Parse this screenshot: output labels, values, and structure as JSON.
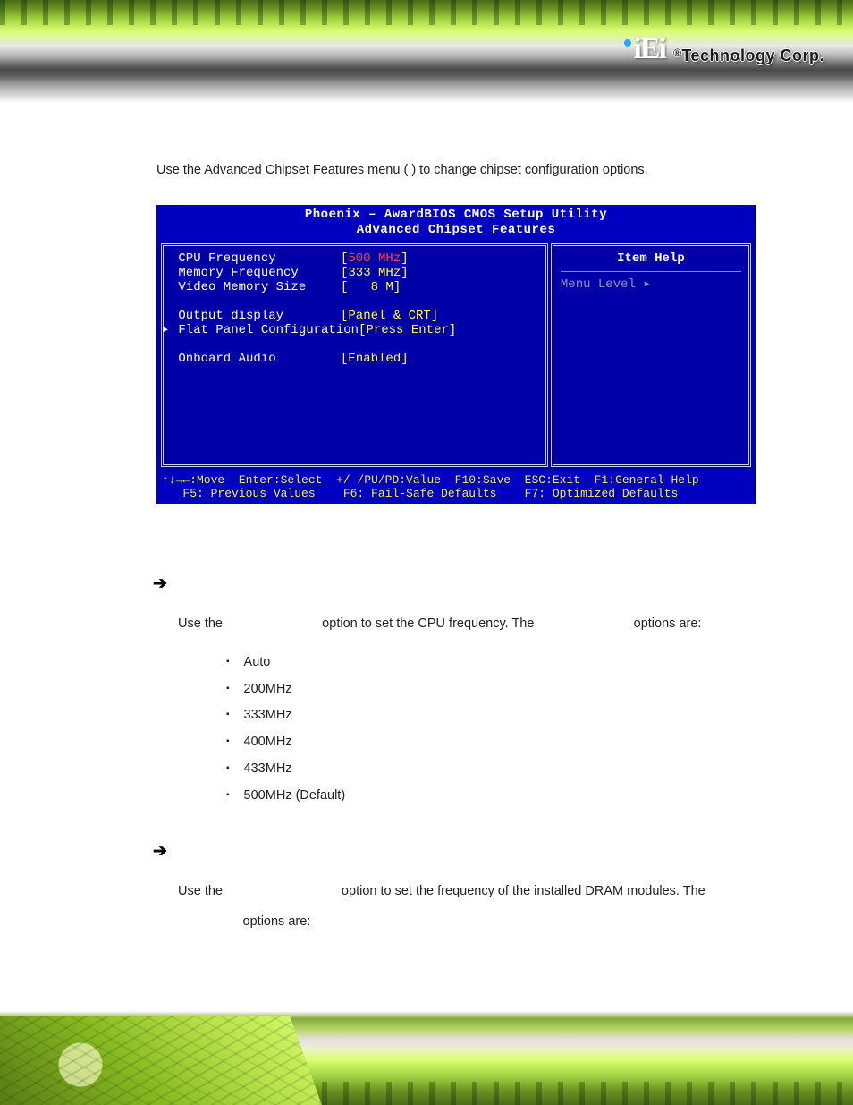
{
  "header": {
    "logo_text": "iEi",
    "logo_dot_colors": [
      "#2aa8ff",
      "#ff8a00",
      "#2aa8ff"
    ],
    "brand_prefix": "®",
    "brand_text": "Technology Corp.",
    "banner_gradient_top": [
      "#4a6b1a",
      "#6b9020",
      "#a0d040",
      "#d8ff70",
      "#e8e8e8",
      "#b0b0b0",
      "#707070",
      "#4a4a4a"
    ],
    "circuit_colors": [
      "#5a7a15",
      "#87b820",
      "#b8e048",
      "#d8ff70"
    ]
  },
  "intro": {
    "line": "Use the Advanced Chipset Features menu (                 ) to change chipset configuration options."
  },
  "bios": {
    "title_line1": "Phoenix – AwardBIOS CMOS Setup Utility",
    "title_line2": "Advanced Chipset Features",
    "colors": {
      "title_bg": "#0000c0",
      "body_bg": "#0000a8",
      "border": "#d0d0ff",
      "text": "#ffffff",
      "value": "#ffff40",
      "highlight": "#ff4040",
      "dim": "#9090c8",
      "footer_text": "#f0f040"
    },
    "items": [
      {
        "label": "CPU Frequency",
        "value": "500 MHz",
        "highlight": true,
        "pointer": false
      },
      {
        "label": "Memory Frequency",
        "value": "333 MHz",
        "highlight": false,
        "pointer": false
      },
      {
        "label": "Video Memory Size",
        "value": "   8 M",
        "highlight": false,
        "pointer": false
      },
      {
        "label": "",
        "value": "",
        "highlight": false,
        "pointer": false,
        "blank": true
      },
      {
        "label": "Output display",
        "value": "Panel & CRT",
        "highlight": false,
        "pointer": false
      },
      {
        "label": "Flat Panel Configuration",
        "value": "Press Enter",
        "highlight": false,
        "pointer": true
      },
      {
        "label": "",
        "value": "",
        "highlight": false,
        "pointer": false,
        "blank": true
      },
      {
        "label": "Onboard Audio",
        "value": "Enabled",
        "highlight": false,
        "pointer": false
      }
    ],
    "help_title": "Item Help",
    "menu_level": "Menu Level   ▸",
    "footer_line1": "↑↓→←:Move  Enter:Select  +/-/PU/PD:Value  F10:Save  ESC:Exit  F1:General Help",
    "footer_line2": "   F5: Previous Values    F6: Fail-Safe Defaults    F7: Optimized Defaults"
  },
  "cpu_section": {
    "arrow": "➔",
    "text_before": "Use the ",
    "text_mid": " option to set the CPU frequency. The ",
    "text_after": " options are:",
    "options": [
      "Auto",
      "200MHz",
      "333MHz",
      "400MHz",
      "433MHz",
      "500MHz (Default)"
    ]
  },
  "mem_section": {
    "arrow": "➔",
    "text_before": "Use the ",
    "text_mid": " option to set the frequency of the installed DRAM modules. The ",
    "text_after": " options are:"
  },
  "footer": {
    "banner_gradient_bottom": [
      "#4a6b1a",
      "#6b9020",
      "#a0d040",
      "#d8ff70",
      "#f0f0d0",
      "#e0e0e0"
    ]
  }
}
